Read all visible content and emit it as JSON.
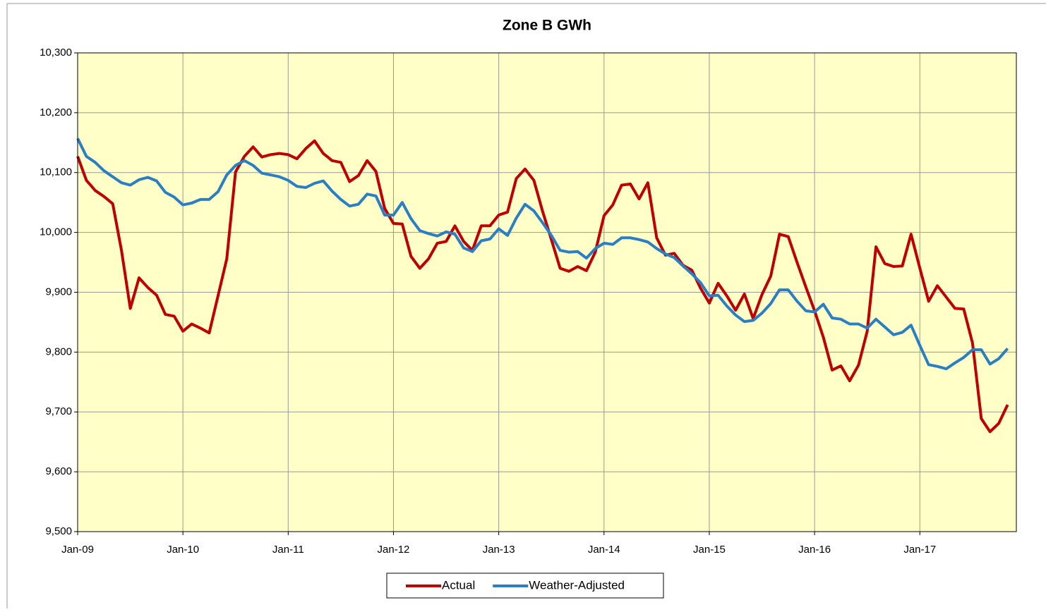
{
  "chart_data": {
    "type": "line",
    "title": "Zone B GWh",
    "categories": [
      "Jan-09",
      null,
      null,
      null,
      null,
      null,
      null,
      null,
      null,
      null,
      null,
      null,
      "Jan-10",
      null,
      null,
      null,
      null,
      null,
      null,
      null,
      null,
      null,
      null,
      null,
      "Jan-11",
      null,
      null,
      null,
      null,
      null,
      null,
      null,
      null,
      null,
      null,
      null,
      "Jan-12",
      null,
      null,
      null,
      null,
      null,
      null,
      null,
      null,
      null,
      null,
      null,
      "Jan-13",
      null,
      null,
      null,
      null,
      null,
      null,
      null,
      null,
      null,
      null,
      null,
      "Jan-14",
      null,
      null,
      null,
      null,
      null,
      null,
      null,
      null,
      null,
      null,
      null,
      "Jan-15",
      null,
      null,
      null,
      null,
      null,
      null,
      null,
      null,
      null,
      null,
      null,
      "Jan-16",
      null,
      null,
      null,
      null,
      null,
      null,
      null,
      null,
      null,
      null,
      null,
      "Jan-17",
      null,
      null,
      null,
      null,
      null,
      null,
      null,
      null,
      null,
      null
    ],
    "series": [
      {
        "name": "Actual",
        "color": "#c00000",
        "values": [
          10127,
          10087,
          10070,
          10060,
          10048,
          9970,
          9873,
          9924,
          9908,
          9895,
          9863,
          9860,
          9835,
          9847,
          9840,
          9832,
          9894,
          9956,
          10101,
          10127,
          10143,
          10126,
          10130,
          10132,
          10130,
          10123,
          10140,
          10153,
          10132,
          10120,
          10117,
          10085,
          10095,
          10120,
          10102,
          10040,
          10015,
          10014,
          9960,
          9940,
          9956,
          9982,
          9985,
          10011,
          9985,
          9970,
          10011,
          10011,
          10029,
          10034,
          10090,
          10106,
          10087,
          10035,
          9988,
          9940,
          9935,
          9943,
          9936,
          9967,
          10028,
          10046,
          10079,
          10081,
          10056,
          10083,
          9991,
          9962,
          9965,
          9945,
          9937,
          9907,
          9882,
          9915,
          9894,
          9870,
          9897,
          9856,
          9896,
          9927,
          9997,
          9993,
          9950,
          9909,
          9869,
          9825,
          9770,
          9777,
          9752,
          9778,
          9835,
          9976,
          9948,
          9943,
          9944,
          9997,
          9940,
          9885,
          9911,
          9892,
          9873,
          9872,
          9815,
          9689,
          9667,
          9681,
          9712
        ]
      },
      {
        "name": "Weather-Adjusted",
        "color": "#2a7fc4",
        "values": [
          10157,
          10127,
          10117,
          10103,
          10093,
          10083,
          10079,
          10088,
          10092,
          10086,
          10067,
          10059,
          10046,
          10049,
          10055,
          10055,
          10068,
          10096,
          10112,
          10120,
          10112,
          10099,
          10096,
          10093,
          10087,
          10077,
          10075,
          10082,
          10086,
          10069,
          10055,
          10044,
          10047,
          10064,
          10061,
          10029,
          10029,
          10050,
          10023,
          10003,
          9998,
          9994,
          10001,
          9997,
          9974,
          9968,
          9986,
          9989,
          10006,
          9995,
          10024,
          10047,
          10036,
          10016,
          9995,
          9970,
          9967,
          9968,
          9957,
          9973,
          9982,
          9980,
          9991,
          9991,
          9988,
          9984,
          9973,
          9964,
          9958,
          9944,
          9931,
          9916,
          9894,
          9895,
          9877,
          9862,
          9851,
          9853,
          9865,
          9881,
          9904,
          9904,
          9885,
          9869,
          9867,
          9880,
          9857,
          9855,
          9847,
          9847,
          9840,
          9855,
          9842,
          9829,
          9833,
          9845,
          9811,
          9779,
          9776,
          9772,
          9782,
          9791,
          9804,
          9804,
          9780,
          9789,
          9806
        ]
      }
    ],
    "ylim": [
      9500,
      10300
    ],
    "yticks": [
      {
        "value": 9500,
        "label": "9,500"
      },
      {
        "value": 9600,
        "label": "9,600"
      },
      {
        "value": 9700,
        "label": "9,700"
      },
      {
        "value": 9800,
        "label": "9,800"
      },
      {
        "value": 9900,
        "label": "9,900"
      },
      {
        "value": 10000,
        "label": "10,000"
      },
      {
        "value": 10100,
        "label": "10,100"
      },
      {
        "value": 10200,
        "label": "10,200"
      },
      {
        "value": 10300,
        "label": "10,300"
      }
    ],
    "grid": true,
    "legend": "bottom"
  }
}
